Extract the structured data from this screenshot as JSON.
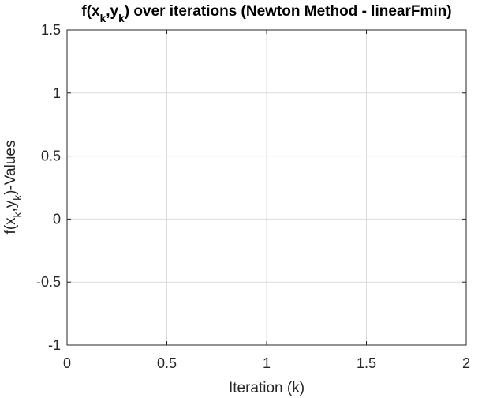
{
  "chart_data": {
    "type": "line",
    "title": {
      "parts": [
        {
          "text": "f(x",
          "sub": false
        },
        {
          "text": "k",
          "sub": true
        },
        {
          "text": ",y",
          "sub": false
        },
        {
          "text": "k",
          "sub": true
        },
        {
          "text": ") over iterations (Newton Method - linearFmin)",
          "sub": false
        }
      ]
    },
    "xlabel": "Iteration (k)",
    "ylabel": {
      "parts": [
        {
          "text": "f(x",
          "sub": false
        },
        {
          "text": "k",
          "sub": true
        },
        {
          "text": ",y",
          "sub": false
        },
        {
          "text": "k",
          "sub": true
        },
        {
          "text": ")-Values",
          "sub": false
        }
      ]
    },
    "xlim": [
      0,
      2
    ],
    "ylim": [
      -1,
      1.5
    ],
    "xticks": [
      0,
      0.5,
      1,
      1.5,
      2
    ],
    "xtick_labels": [
      "0",
      "0.5",
      "1",
      "1.5",
      "2"
    ],
    "yticks": [
      -1,
      -0.5,
      0,
      0.5,
      1,
      1.5
    ],
    "ytick_labels": [
      "-1",
      "-0.5",
      "0",
      "0.5",
      "1",
      "1.5"
    ],
    "grid": true,
    "series": []
  }
}
